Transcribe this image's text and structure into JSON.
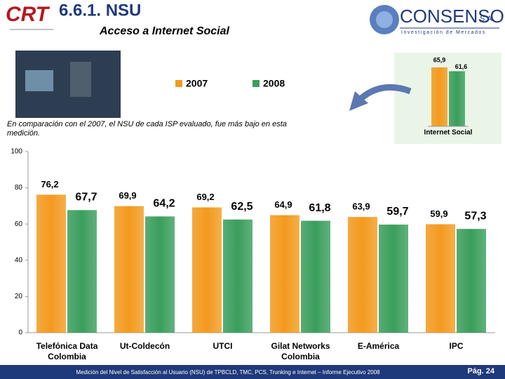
{
  "header": {
    "title": "6.6.1. NSU",
    "subtitle": "Acceso a Internet Social",
    "logo_left": "CRT",
    "logo_right": "CONSENSO",
    "logo_right_suffix": "S.A",
    "logo_right_tagline": "Investigación de Mercados"
  },
  "note": "En comparación con el 2007, el NSU de cada ISP evaluado, fue más bajo en esta medición.",
  "footer": {
    "text": "Medición del Nivel de Satisfacción al Usuario (NSU) de TPBCLD, TMC, PCS, Trunking e Internet – Informe Ejecutivo 2008",
    "page": "Pág. 24"
  },
  "chart_data": [
    {
      "type": "bar",
      "categories": [
        "Telefónica Data Colombia",
        "Ut-Coldecón",
        "UTCI",
        "Gilat Networks Colombia",
        "E-América",
        "IPC"
      ],
      "series": [
        {
          "name": "2007",
          "color": "#f39a1e",
          "values": [
            76.2,
            69.9,
            69.2,
            64.9,
            63.9,
            59.9
          ],
          "value_labels": [
            "76,2",
            "69,9",
            "69,2",
            "64,9",
            "63,9",
            "59,9"
          ]
        },
        {
          "name": "2008",
          "color": "#3a9e5c",
          "values": [
            67.7,
            64.2,
            62.5,
            61.8,
            59.7,
            57.3
          ],
          "value_labels": [
            "67,7",
            "64,2",
            "62,5",
            "61,8",
            "59,7",
            "57,3"
          ]
        }
      ],
      "ylim": [
        0,
        100
      ],
      "yticks": [
        0,
        20,
        40,
        60,
        80,
        100
      ],
      "legend": "top"
    },
    {
      "type": "bar",
      "categories": [
        "Internet Social"
      ],
      "series": [
        {
          "color": "#f39a1e",
          "values": [
            65.9
          ],
          "value_labels": [
            "65,9"
          ]
        },
        {
          "color": "#3a9e5c",
          "values": [
            61.6
          ],
          "value_labels": [
            "61,6"
          ]
        }
      ]
    }
  ]
}
